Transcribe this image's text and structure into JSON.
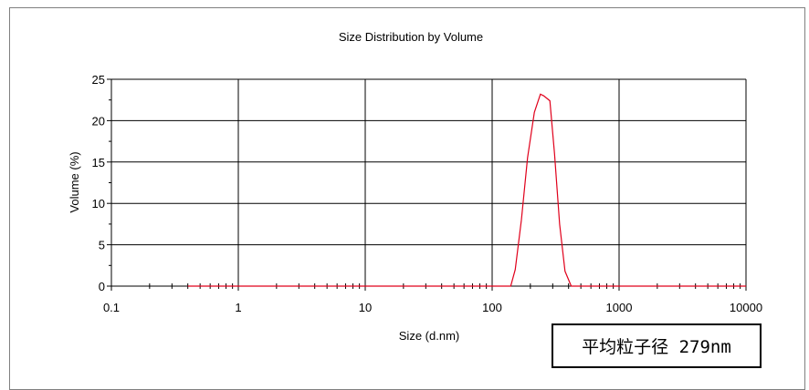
{
  "chart_data": {
    "type": "line",
    "title": "Size Distribution by Volume",
    "xlabel": "Size (d.nm)",
    "ylabel": "Volume (%)",
    "x_scale": "log",
    "xlim": [
      0.1,
      10000
    ],
    "ylim": [
      0,
      25
    ],
    "x_ticks": [
      "0.1",
      "1",
      "10",
      "100",
      "1000",
      "10000"
    ],
    "y_ticks": [
      "0",
      "5",
      "10",
      "15",
      "20",
      "25"
    ],
    "grid": true,
    "series": [
      {
        "color": "#e0001b",
        "x": [
          0.4,
          1,
          10,
          100,
          140,
          152,
          170,
          190,
          215,
          240,
          255,
          285,
          310,
          340,
          375,
          420,
          470,
          520,
          600,
          1000,
          10000
        ],
        "y": [
          0,
          0,
          0,
          0,
          0,
          2.0,
          8.0,
          15.5,
          21.0,
          23.2,
          23.0,
          22.4,
          16.0,
          7.5,
          1.8,
          0,
          0,
          0,
          0,
          0,
          0
        ]
      }
    ]
  },
  "annotation": {
    "text": "平均粒子径 279nm"
  }
}
